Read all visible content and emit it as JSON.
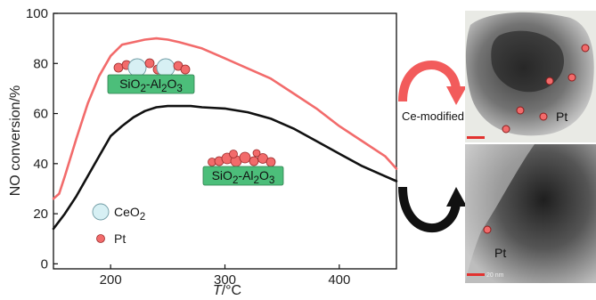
{
  "chart_data": {
    "type": "line",
    "xlabel_italic": "T",
    "xlabel_unit": "/°C",
    "ylabel": "NO conversion/%",
    "xlim": [
      150,
      450
    ],
    "ylim": [
      -2,
      100
    ],
    "x_ticks": [
      200,
      300,
      400
    ],
    "y_ticks": [
      0,
      20,
      40,
      60,
      80,
      100
    ],
    "series": [
      {
        "color": "#f26b6b",
        "x": [
          150,
          155,
          160,
          170,
          180,
          190,
          200,
          210,
          220,
          230,
          240,
          250,
          260,
          280,
          300,
          320,
          340,
          360,
          380,
          400,
          420,
          440,
          450
        ],
        "y": [
          26,
          28,
          35,
          50,
          64,
          75,
          83,
          87.5,
          88.5,
          89.5,
          90,
          89.5,
          88.5,
          86,
          82,
          78,
          74,
          68,
          62,
          55,
          49,
          43,
          38
        ]
      },
      {
        "color": "#111111",
        "x": [
          150,
          160,
          170,
          180,
          190,
          200,
          210,
          220,
          230,
          240,
          250,
          260,
          270,
          280,
          300,
          320,
          340,
          360,
          380,
          400,
          420,
          440,
          450
        ],
        "y": [
          14,
          20,
          27,
          35,
          43,
          51,
          55,
          58.5,
          61,
          62.5,
          63,
          63,
          63,
          62.5,
          62,
          60.5,
          58,
          54,
          49,
          44,
          39,
          35,
          33
        ]
      }
    ]
  },
  "labels": {
    "support_top": "SiO<sub>2</sub>-Al<sub>2</sub>O<sub>3</sub>",
    "support_bottom": "SiO<sub>2</sub>-Al<sub>2</sub>O<sub>3</sub>",
    "legend_ceo2": "CeO<sub>2</sub>",
    "legend_pt": "Pt",
    "arrow_label": "Ce-modified",
    "tem_top_label": "Pt",
    "tem_bottom_label": "Pt",
    "scale_bar_bottom": "20 nm"
  },
  "colors": {
    "support_fill": "#4cbe7a",
    "ceo2_fill": "#d7f0f4",
    "pt_fill": "#f26b6b",
    "arrow_red": "#f25b5b",
    "arrow_black": "#111111",
    "scale_bar": "#e2322f"
  },
  "icons": {
    "ceo2_marker": "ceo2-particle-icon",
    "pt_marker": "pt-particle-icon",
    "cycle_arrow_top": "red-curved-arrow-icon",
    "cycle_arrow_bottom": "black-curved-arrow-icon"
  }
}
